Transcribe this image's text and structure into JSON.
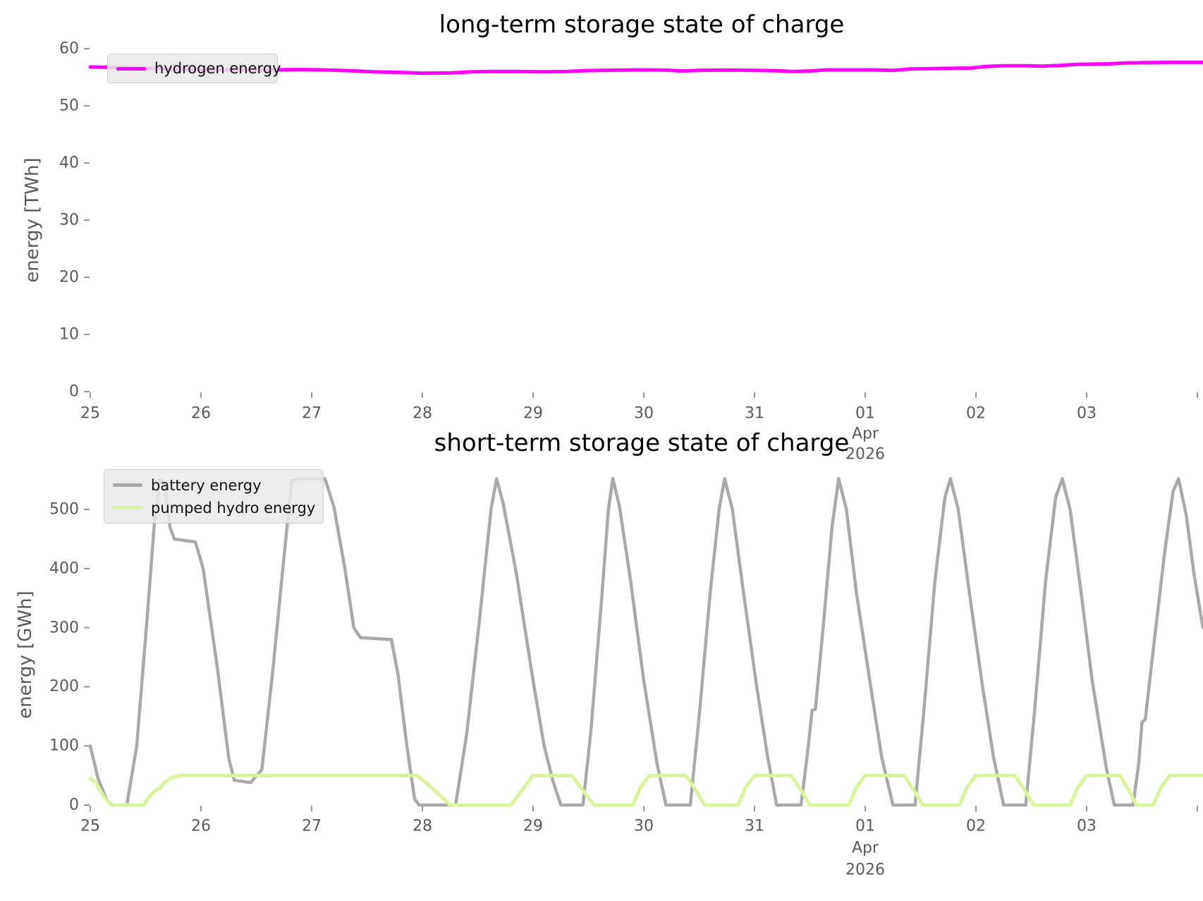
{
  "figure": {
    "background": "#ffffff"
  },
  "chart_data": [
    {
      "type": "line",
      "title": "long-term storage state of charge",
      "ylabel": "energy [TWh]",
      "x_unit": "days since 2026-03-25 00:00",
      "xlim": [
        0,
        10.05
      ],
      "ylim": [
        0,
        60
      ],
      "grid": false,
      "legend_position": "upper left",
      "yticks": [
        0,
        10,
        20,
        30,
        40,
        50,
        60
      ],
      "xticks": [
        {
          "pos": 0,
          "label": "25"
        },
        {
          "pos": 1,
          "label": "26"
        },
        {
          "pos": 2,
          "label": "27"
        },
        {
          "pos": 3,
          "label": "28"
        },
        {
          "pos": 4,
          "label": "29"
        },
        {
          "pos": 5,
          "label": "30"
        },
        {
          "pos": 6,
          "label": "31"
        },
        {
          "pos": 7,
          "label": "01",
          "sub": [
            "Apr",
            "2026"
          ]
        },
        {
          "pos": 8,
          "label": "02"
        },
        {
          "pos": 9,
          "label": "03"
        },
        {
          "pos": 10,
          "label": ""
        }
      ],
      "series": [
        {
          "name": "hydrogen energy",
          "color": "#ff00ff",
          "width": 5,
          "points": [
            [
              0,
              56.8
            ],
            [
              0.25,
              56.7
            ],
            [
              0.5,
              56.55
            ],
            [
              0.75,
              56.45
            ],
            [
              1.0,
              56.35
            ],
            [
              1.3,
              56.3
            ],
            [
              1.6,
              56.3
            ],
            [
              1.9,
              56.35
            ],
            [
              2.1,
              56.3
            ],
            [
              2.35,
              56.15
            ],
            [
              2.55,
              55.95
            ],
            [
              2.8,
              55.85
            ],
            [
              3.0,
              55.7
            ],
            [
              3.25,
              55.75
            ],
            [
              3.45,
              55.95
            ],
            [
              3.6,
              56.0
            ],
            [
              3.9,
              56.0
            ],
            [
              4.1,
              55.95
            ],
            [
              4.3,
              56.0
            ],
            [
              4.45,
              56.15
            ],
            [
              4.6,
              56.2
            ],
            [
              4.8,
              56.25
            ],
            [
              5.0,
              56.3
            ],
            [
              5.2,
              56.25
            ],
            [
              5.35,
              56.1
            ],
            [
              5.5,
              56.2
            ],
            [
              5.65,
              56.25
            ],
            [
              5.85,
              56.25
            ],
            [
              6.0,
              56.2
            ],
            [
              6.2,
              56.15
            ],
            [
              6.35,
              56.0
            ],
            [
              6.5,
              56.1
            ],
            [
              6.65,
              56.3
            ],
            [
              6.85,
              56.3
            ],
            [
              7.05,
              56.3
            ],
            [
              7.25,
              56.2
            ],
            [
              7.4,
              56.45
            ],
            [
              7.55,
              56.5
            ],
            [
              7.75,
              56.55
            ],
            [
              7.95,
              56.6
            ],
            [
              8.1,
              56.9
            ],
            [
              8.25,
              57.0
            ],
            [
              8.45,
              57.0
            ],
            [
              8.6,
              56.95
            ],
            [
              8.75,
              57.05
            ],
            [
              8.9,
              57.25
            ],
            [
              9.05,
              57.3
            ],
            [
              9.2,
              57.35
            ],
            [
              9.35,
              57.5
            ],
            [
              9.55,
              57.55
            ],
            [
              9.75,
              57.6
            ],
            [
              9.9,
              57.6
            ],
            [
              10.05,
              57.6
            ]
          ]
        }
      ]
    },
    {
      "type": "line",
      "title": "short-term storage state of charge",
      "ylabel": "energy [GWh]",
      "x_unit": "days since 2026-03-25 00:00",
      "xlim": [
        0,
        10.05
      ],
      "ylim": [
        0,
        560
      ],
      "grid": false,
      "legend_position": "upper left",
      "yticks": [
        0,
        100,
        200,
        300,
        400,
        500
      ],
      "xticks": [
        {
          "pos": 0,
          "label": "25"
        },
        {
          "pos": 1,
          "label": "26"
        },
        {
          "pos": 2,
          "label": "27"
        },
        {
          "pos": 3,
          "label": "28"
        },
        {
          "pos": 4,
          "label": "29"
        },
        {
          "pos": 5,
          "label": "30"
        },
        {
          "pos": 6,
          "label": "31"
        },
        {
          "pos": 7,
          "label": "01",
          "sub": [
            "Apr",
            "2026"
          ]
        },
        {
          "pos": 8,
          "label": "02"
        },
        {
          "pos": 9,
          "label": "03"
        },
        {
          "pos": 10,
          "label": ""
        }
      ],
      "series": [
        {
          "name": "battery energy",
          "color": "#a9a9a9",
          "width": 4.5,
          "points": [
            [
              0,
              100
            ],
            [
              0.07,
              45
            ],
            [
              0.15,
              8
            ],
            [
              0.2,
              0
            ],
            [
              0.33,
              0
            ],
            [
              0.42,
              100
            ],
            [
              0.52,
              330
            ],
            [
              0.58,
              480
            ],
            [
              0.63,
              550
            ],
            [
              0.67,
              545
            ],
            [
              0.72,
              470
            ],
            [
              0.76,
              450
            ],
            [
              0.95,
              445
            ],
            [
              1.02,
              400
            ],
            [
              1.15,
              230
            ],
            [
              1.25,
              80
            ],
            [
              1.3,
              42
            ],
            [
              1.45,
              38
            ],
            [
              1.55,
              60
            ],
            [
              1.65,
              230
            ],
            [
              1.75,
              420
            ],
            [
              1.82,
              548
            ],
            [
              1.88,
              552
            ],
            [
              2.12,
              552
            ],
            [
              2.2,
              505
            ],
            [
              2.3,
              400
            ],
            [
              2.38,
              300
            ],
            [
              2.44,
              283
            ],
            [
              2.72,
              280
            ],
            [
              2.78,
              220
            ],
            [
              2.86,
              100
            ],
            [
              2.93,
              10
            ],
            [
              2.97,
              0
            ],
            [
              3.3,
              0
            ],
            [
              3.4,
              120
            ],
            [
              3.52,
              320
            ],
            [
              3.62,
              500
            ],
            [
              3.67,
              552
            ],
            [
              3.73,
              510
            ],
            [
              3.85,
              390
            ],
            [
              4.0,
              210
            ],
            [
              4.1,
              100
            ],
            [
              4.18,
              40
            ],
            [
              4.25,
              0
            ],
            [
              4.45,
              0
            ],
            [
              4.52,
              120
            ],
            [
              4.62,
              350
            ],
            [
              4.68,
              500
            ],
            [
              4.72,
              552
            ],
            [
              4.78,
              505
            ],
            [
              4.88,
              380
            ],
            [
              5.0,
              210
            ],
            [
              5.12,
              70
            ],
            [
              5.2,
              0
            ],
            [
              5.42,
              0
            ],
            [
              5.5,
              150
            ],
            [
              5.6,
              360
            ],
            [
              5.68,
              500
            ],
            [
              5.73,
              552
            ],
            [
              5.8,
              500
            ],
            [
              5.9,
              360
            ],
            [
              6.02,
              200
            ],
            [
              6.12,
              80
            ],
            [
              6.2,
              0
            ],
            [
              6.42,
              0
            ],
            [
              6.48,
              90
            ],
            [
              6.52,
              160
            ],
            [
              6.55,
              162
            ],
            [
              6.62,
              300
            ],
            [
              6.7,
              470
            ],
            [
              6.76,
              552
            ],
            [
              6.83,
              500
            ],
            [
              6.92,
              360
            ],
            [
              7.05,
              200
            ],
            [
              7.15,
              80
            ],
            [
              7.25,
              0
            ],
            [
              7.45,
              0
            ],
            [
              7.53,
              160
            ],
            [
              7.63,
              380
            ],
            [
              7.72,
              520
            ],
            [
              7.77,
              552
            ],
            [
              7.84,
              500
            ],
            [
              7.94,
              360
            ],
            [
              8.06,
              200
            ],
            [
              8.16,
              80
            ],
            [
              8.25,
              0
            ],
            [
              8.45,
              0
            ],
            [
              8.53,
              160
            ],
            [
              8.63,
              380
            ],
            [
              8.72,
              520
            ],
            [
              8.78,
              552
            ],
            [
              8.85,
              500
            ],
            [
              8.95,
              360
            ],
            [
              9.05,
              210
            ],
            [
              9.12,
              130
            ],
            [
              9.18,
              60
            ],
            [
              9.25,
              0
            ],
            [
              9.42,
              0
            ],
            [
              9.47,
              70
            ],
            [
              9.5,
              140
            ],
            [
              9.53,
              145
            ],
            [
              9.6,
              260
            ],
            [
              9.7,
              420
            ],
            [
              9.78,
              530
            ],
            [
              9.83,
              552
            ],
            [
              9.9,
              490
            ],
            [
              9.97,
              390
            ],
            [
              10.05,
              300
            ]
          ]
        },
        {
          "name": "pumped hydro energy",
          "color": "#d9f49e",
          "width": 5,
          "points": [
            [
              0,
              45
            ],
            [
              0.05,
              38
            ],
            [
              0.12,
              15
            ],
            [
              0.18,
              2
            ],
            [
              0.22,
              0
            ],
            [
              0.48,
              0
            ],
            [
              0.55,
              18
            ],
            [
              0.6,
              26
            ],
            [
              0.63,
              28
            ],
            [
              0.66,
              36
            ],
            [
              0.72,
              45
            ],
            [
              0.8,
              50
            ],
            [
              2.95,
              50
            ],
            [
              3.08,
              30
            ],
            [
              3.25,
              0
            ],
            [
              3.8,
              0
            ],
            [
              3.9,
              25
            ],
            [
              4.0,
              50
            ],
            [
              4.35,
              50
            ],
            [
              4.45,
              25
            ],
            [
              4.55,
              0
            ],
            [
              4.9,
              0
            ],
            [
              4.97,
              30
            ],
            [
              5.05,
              50
            ],
            [
              5.38,
              50
            ],
            [
              5.47,
              25
            ],
            [
              5.55,
              0
            ],
            [
              5.85,
              0
            ],
            [
              5.92,
              30
            ],
            [
              6.0,
              50
            ],
            [
              6.33,
              50
            ],
            [
              6.42,
              25
            ],
            [
              6.5,
              0
            ],
            [
              6.85,
              0
            ],
            [
              6.92,
              30
            ],
            [
              7.0,
              50
            ],
            [
              7.35,
              50
            ],
            [
              7.44,
              25
            ],
            [
              7.52,
              0
            ],
            [
              7.85,
              0
            ],
            [
              7.92,
              30
            ],
            [
              8.0,
              50
            ],
            [
              8.35,
              50
            ],
            [
              8.44,
              25
            ],
            [
              8.52,
              0
            ],
            [
              8.85,
              0
            ],
            [
              8.92,
              30
            ],
            [
              9.0,
              50
            ],
            [
              9.3,
              50
            ],
            [
              9.38,
              25
            ],
            [
              9.45,
              0
            ],
            [
              9.6,
              0
            ],
            [
              9.67,
              30
            ],
            [
              9.75,
              50
            ],
            [
              10.05,
              50
            ]
          ]
        }
      ]
    }
  ]
}
